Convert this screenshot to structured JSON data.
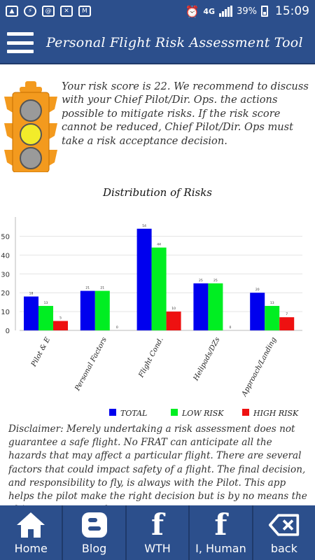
{
  "status_bar": {
    "network": "4G",
    "battery": "39%",
    "time": "15:09",
    "left_icons": [
      "gallery-icon",
      "messenger-icon",
      "email-at-icon",
      "mail-icon",
      "gmail-icon"
    ]
  },
  "header": {
    "title": "Personal Flight Risk Assessment Tool"
  },
  "risk": {
    "message": "Your risk score is 22. We recommend to discuss with your Chief Pilot/Dir. Ops. the actions possible to mitigate risks. If the risk score cannot be reduced, Chief Pilot/Dir. Ops must take a risk acceptance decision.",
    "light_colors": {
      "body": "#f39a1e",
      "off": "#9a9a9a",
      "on": "#f2ec2a"
    }
  },
  "chart_data": {
    "type": "bar",
    "title": "Distribution of Risks",
    "categories": [
      "Pilot & E",
      "Personal Factors",
      "Flight Cond.",
      "Helipads/DZs",
      "Approach/Landing"
    ],
    "series": [
      {
        "name": "TOTAL",
        "color": "#0000ee",
        "values": [
          18,
          21,
          54,
          25,
          20
        ]
      },
      {
        "name": "LOW RISK",
        "color": "#00ee22",
        "values": [
          13,
          21,
          44,
          25,
          13
        ]
      },
      {
        "name": "HIGH RISK",
        "color": "#ee1111",
        "values": [
          5,
          0,
          10,
          0,
          7
        ]
      }
    ],
    "yticks": [
      0,
      10,
      20,
      30,
      40,
      50
    ],
    "ylim": [
      0,
      58
    ],
    "grid": true,
    "legend": "bottom-right"
  },
  "disclaimer": "Disclaimer: Merely undertaking a risk assessment does not guarantee a safe flight. No FRAT can anticipate all the hazards that may affect a particular flight. There are several factors that could impact safety of a flight. The final decision, and responsibility to fly, is always with the Pilot. This app helps the pilot make the right decision but is by no means the ultimate answer and",
  "nav": {
    "home": "Home",
    "blog": "Blog",
    "wth": "WTH",
    "ihuman": "I, Human",
    "back": "back"
  }
}
